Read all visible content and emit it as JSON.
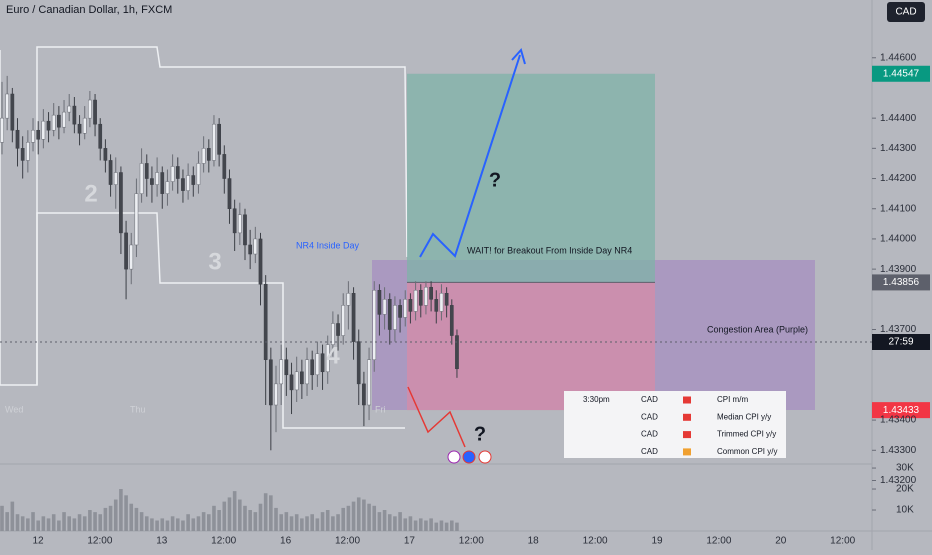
{
  "chart_data": {
    "type": "candlestick",
    "title": "Euro / Canadian Dollar, 1h, FXCM",
    "currency_button": "CAD",
    "ylim": [
      1.43142,
      1.44682
    ],
    "yticks": [
      {
        "value": 1.446,
        "label": "1.44600"
      },
      {
        "value": 1.444,
        "label": "1.44400"
      },
      {
        "value": 1.443,
        "label": "1.44300"
      },
      {
        "value": 1.442,
        "label": "1.44200"
      },
      {
        "value": 1.441,
        "label": "1.44100"
      },
      {
        "value": 1.44,
        "label": "1.44000"
      },
      {
        "value": 1.439,
        "label": "1.43900"
      },
      {
        "value": 1.437,
        "label": "1.43700"
      },
      {
        "value": 1.434,
        "label": "1.43400"
      },
      {
        "value": 1.433,
        "label": "1.43300"
      },
      {
        "value": 1.432,
        "label": "1.43200"
      }
    ],
    "time_axis_labels": [
      "12",
      "12:00",
      "13",
      "12:00",
      "16",
      "12:00",
      "17",
      "12:00",
      "18",
      "12:00",
      "19",
      "12:00",
      "20",
      "12:00"
    ],
    "day_labels": [
      "Wed",
      "Thu",
      "Fri"
    ],
    "ohlc": [
      [
        1.4432,
        1.4452,
        1.4428,
        1.444
      ],
      [
        1.444,
        1.4454,
        1.4436,
        1.4448
      ],
      [
        1.4448,
        1.445,
        1.4432,
        1.4436
      ],
      [
        1.4436,
        1.444,
        1.4424,
        1.443
      ],
      [
        1.443,
        1.4434,
        1.442,
        1.4426
      ],
      [
        1.4426,
        1.4436,
        1.4422,
        1.4432
      ],
      [
        1.4432,
        1.444,
        1.4429,
        1.4436
      ],
      [
        1.4436,
        1.4439,
        1.4428,
        1.4433
      ],
      [
        1.4433,
        1.4443,
        1.443,
        1.4439
      ],
      [
        1.4439,
        1.4442,
        1.4432,
        1.4436
      ],
      [
        1.4436,
        1.4445,
        1.4434,
        1.4441
      ],
      [
        1.4441,
        1.4444,
        1.4433,
        1.4437
      ],
      [
        1.4437,
        1.4446,
        1.4435,
        1.4442
      ],
      [
        1.4442,
        1.4448,
        1.4439,
        1.4444
      ],
      [
        1.4444,
        1.4447,
        1.4435,
        1.4438
      ],
      [
        1.4438,
        1.4441,
        1.4431,
        1.4435
      ],
      [
        1.4435,
        1.4444,
        1.4433,
        1.444
      ],
      [
        1.444,
        1.4449,
        1.4437,
        1.4446
      ],
      [
        1.4446,
        1.4448,
        1.4434,
        1.4438
      ],
      [
        1.4438,
        1.444,
        1.4426,
        1.443
      ],
      [
        1.443,
        1.4433,
        1.4422,
        1.4426
      ],
      [
        1.4426,
        1.4428,
        1.4414,
        1.4418
      ],
      [
        1.4418,
        1.4427,
        1.441,
        1.4422
      ],
      [
        1.4422,
        1.4424,
        1.4395,
        1.4402
      ],
      [
        1.4402,
        1.4406,
        1.438,
        1.439
      ],
      [
        1.439,
        1.4402,
        1.4385,
        1.4398
      ],
      [
        1.4398,
        1.442,
        1.4394,
        1.4415
      ],
      [
        1.4415,
        1.443,
        1.4412,
        1.4425
      ],
      [
        1.4425,
        1.4428,
        1.4414,
        1.442
      ],
      [
        1.442,
        1.4424,
        1.4412,
        1.4418
      ],
      [
        1.4418,
        1.4427,
        1.4414,
        1.4422
      ],
      [
        1.4422,
        1.4424,
        1.441,
        1.4415
      ],
      [
        1.4415,
        1.4423,
        1.4411,
        1.4419
      ],
      [
        1.4419,
        1.4428,
        1.4416,
        1.4424
      ],
      [
        1.4424,
        1.4427,
        1.4415,
        1.442
      ],
      [
        1.442,
        1.4423,
        1.4412,
        1.4416
      ],
      [
        1.4416,
        1.4425,
        1.4413,
        1.4421
      ],
      [
        1.4421,
        1.4424,
        1.4414,
        1.4418
      ],
      [
        1.4418,
        1.4429,
        1.4415,
        1.4425
      ],
      [
        1.4425,
        1.4434,
        1.4422,
        1.443
      ],
      [
        1.443,
        1.4433,
        1.4422,
        1.4426
      ],
      [
        1.4426,
        1.4441,
        1.4424,
        1.4438
      ],
      [
        1.4438,
        1.444,
        1.4424,
        1.4428
      ],
      [
        1.4428,
        1.4431,
        1.4415,
        1.442
      ],
      [
        1.442,
        1.4423,
        1.4405,
        1.441
      ],
      [
        1.441,
        1.4413,
        1.4396,
        1.4402
      ],
      [
        1.4402,
        1.4412,
        1.4398,
        1.4408
      ],
      [
        1.4408,
        1.441,
        1.4393,
        1.4398
      ],
      [
        1.4398,
        1.4403,
        1.439,
        1.4395
      ],
      [
        1.4395,
        1.4404,
        1.4392,
        1.44
      ],
      [
        1.44,
        1.4402,
        1.4378,
        1.4385
      ],
      [
        1.4385,
        1.4388,
        1.4345,
        1.436
      ],
      [
        1.436,
        1.4364,
        1.433,
        1.4345
      ],
      [
        1.4345,
        1.4358,
        1.4336,
        1.4352
      ],
      [
        1.4352,
        1.4365,
        1.4345,
        1.436
      ],
      [
        1.436,
        1.4364,
        1.4348,
        1.4355
      ],
      [
        1.4355,
        1.4359,
        1.4342,
        1.435
      ],
      [
        1.435,
        1.4361,
        1.4346,
        1.4356
      ],
      [
        1.4356,
        1.436,
        1.4347,
        1.4352
      ],
      [
        1.4352,
        1.4364,
        1.4348,
        1.436
      ],
      [
        1.436,
        1.4363,
        1.435,
        1.4355
      ],
      [
        1.4355,
        1.4366,
        1.4351,
        1.4362
      ],
      [
        1.4362,
        1.4365,
        1.435,
        1.4356
      ],
      [
        1.4356,
        1.4368,
        1.4352,
        1.4365
      ],
      [
        1.4365,
        1.4376,
        1.4361,
        1.4372
      ],
      [
        1.4372,
        1.4375,
        1.4363,
        1.4368
      ],
      [
        1.4368,
        1.4382,
        1.4365,
        1.4378
      ],
      [
        1.4378,
        1.4386,
        1.437,
        1.4382
      ],
      [
        1.4382,
        1.4384,
        1.436,
        1.4366
      ],
      [
        1.4366,
        1.437,
        1.4345,
        1.4352
      ],
      [
        1.4352,
        1.4356,
        1.4338,
        1.4345
      ],
      [
        1.4345,
        1.4364,
        1.434,
        1.436
      ],
      [
        1.436,
        1.4386,
        1.4356,
        1.4383
      ],
      [
        1.4383,
        1.4385,
        1.4368,
        1.4375
      ],
      [
        1.4375,
        1.4384,
        1.437,
        1.438
      ],
      [
        1.438,
        1.4382,
        1.4365,
        1.437
      ],
      [
        1.437,
        1.4381,
        1.4366,
        1.4378
      ],
      [
        1.4378,
        1.438,
        1.4369,
        1.4374
      ],
      [
        1.4374,
        1.4383,
        1.4371,
        1.438
      ],
      [
        1.438,
        1.4382,
        1.4372,
        1.4376
      ],
      [
        1.4376,
        1.4386,
        1.4373,
        1.4383
      ],
      [
        1.4383,
        1.4385,
        1.4374,
        1.4378
      ],
      [
        1.4378,
        1.4386,
        1.4375,
        1.4384
      ],
      [
        1.4384,
        1.4386,
        1.4376,
        1.438
      ],
      [
        1.438,
        1.4383,
        1.4372,
        1.4376
      ],
      [
        1.4376,
        1.4385,
        1.4373,
        1.4382
      ],
      [
        1.4382,
        1.4384,
        1.4374,
        1.4378
      ],
      [
        1.4378,
        1.438,
        1.4365,
        1.4368
      ],
      [
        1.4368,
        1.437,
        1.4354,
        1.4357
      ]
    ],
    "volumes": [
      12000,
      9000,
      14000,
      8000,
      7000,
      6000,
      9000,
      5000,
      7000,
      6000,
      8000,
      5000,
      9000,
      7000,
      6000,
      8000,
      7000,
      10000,
      9000,
      8000,
      11000,
      12000,
      15000,
      20000,
      17000,
      13000,
      11000,
      9000,
      7000,
      6000,
      5000,
      6000,
      5000,
      7000,
      6000,
      5000,
      8000,
      6000,
      7000,
      9000,
      8000,
      12000,
      10000,
      14000,
      16000,
      19000,
      15000,
      12000,
      10000,
      9000,
      13000,
      18000,
      17000,
      11000,
      8000,
      9000,
      7000,
      8000,
      6000,
      7000,
      8000,
      6000,
      9000,
      10000,
      7000,
      8000,
      11000,
      12000,
      14000,
      16000,
      15000,
      13000,
      12000,
      9000,
      10000,
      8000,
      7000,
      9000,
      6000,
      7000,
      5000,
      6000,
      5000,
      6000,
      4000,
      5000,
      4000,
      5000,
      4000
    ],
    "vol_ylim": [
      0,
      30500
    ],
    "vol_yticks": [
      {
        "value": 30000,
        "label": "30K"
      },
      {
        "value": 20000,
        "label": "20K"
      },
      {
        "value": 10000,
        "label": "10K"
      }
    ],
    "target_price": 1.44547,
    "entry_price": 1.43856,
    "stop_price": 1.43433,
    "countdown": "27:59",
    "annotations": {
      "wave_2": "2",
      "wave_3": "3",
      "wave_4": "4",
      "nr4": "NR4 Inside Day",
      "wait": "WAIT! for Breakout From Inside Day NR4",
      "congestion": "Congestion Area (Purple)",
      "question_up": "?",
      "question_down": "?"
    },
    "events": [
      {
        "time": "3:30pm",
        "currency": "CAD",
        "name": "CPI m/m"
      },
      {
        "time": null,
        "currency": "CAD",
        "name": "Median CPI y/y"
      },
      {
        "time": null,
        "currency": "CAD",
        "name": "Trimmed CPI y/y"
      },
      {
        "time": null,
        "currency": "CAD",
        "name": "Common CPI y/y"
      }
    ]
  }
}
